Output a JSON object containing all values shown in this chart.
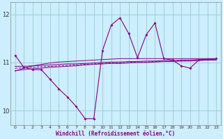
{
  "xlabel": "Windchill (Refroidissement éolien,°C)",
  "bg_color": "#cceeff",
  "line_color": "#880088",
  "grid_color": "#99cccc",
  "xlim": [
    -0.5,
    23.5
  ],
  "ylim": [
    9.7,
    12.25
  ],
  "yticks": [
    10,
    11,
    12
  ],
  "xticks": [
    0,
    1,
    2,
    3,
    4,
    5,
    6,
    7,
    8,
    9,
    10,
    11,
    12,
    13,
    14,
    15,
    16,
    17,
    18,
    19,
    20,
    21,
    22,
    23
  ],
  "main_line_x": [
    0,
    1,
    2,
    3,
    4,
    5,
    6,
    7,
    8,
    9,
    10,
    11,
    12,
    13,
    14,
    15,
    16,
    17,
    18,
    19,
    20,
    21,
    22,
    23
  ],
  "main_line_y": [
    11.15,
    10.9,
    10.85,
    10.85,
    10.65,
    10.45,
    10.28,
    10.08,
    9.83,
    9.83,
    11.25,
    11.78,
    11.93,
    11.6,
    11.1,
    11.58,
    11.82,
    11.08,
    11.05,
    10.93,
    10.88,
    11.05,
    11.07,
    11.08
  ],
  "line_rising_y": [
    10.82,
    10.88,
    10.93,
    10.96,
    10.99,
    11.01,
    11.02,
    11.03,
    11.04,
    11.05,
    11.06,
    11.07,
    11.08,
    11.08,
    11.08,
    11.08,
    11.08,
    11.08,
    11.08,
    11.08,
    11.08,
    11.08,
    11.08,
    11.08
  ],
  "line_flat1_y": [
    10.92,
    10.92,
    10.93,
    10.94,
    10.95,
    10.96,
    10.97,
    10.97,
    10.98,
    10.99,
    11.0,
    11.01,
    11.01,
    11.02,
    11.02,
    11.03,
    11.03,
    11.04,
    11.04,
    11.05,
    11.05,
    11.06,
    11.06,
    11.07
  ],
  "line_flat2_y": [
    10.88,
    10.89,
    10.9,
    10.91,
    10.92,
    10.93,
    10.94,
    10.95,
    10.96,
    10.97,
    10.98,
    10.99,
    10.99,
    11.0,
    11.01,
    11.01,
    11.02,
    11.02,
    11.03,
    11.03,
    11.04,
    11.05,
    11.05,
    11.06
  ],
  "line_flat3_y": [
    10.83,
    10.85,
    10.87,
    10.88,
    10.9,
    10.91,
    10.92,
    10.93,
    10.95,
    10.96,
    10.97,
    10.98,
    10.98,
    10.99,
    11.0,
    11.0,
    11.01,
    11.02,
    11.02,
    11.03,
    11.03,
    11.04,
    11.05,
    11.05
  ]
}
